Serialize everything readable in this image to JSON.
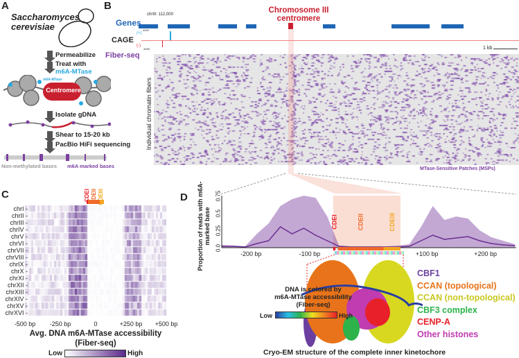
{
  "panels": {
    "a": "A",
    "b": "B",
    "c": "C",
    "d": "D"
  },
  "panel_a": {
    "organism_line1": "Saccharomyces",
    "organism_line2": "cerevisiae",
    "steps": [
      "Permeabilize",
      "Treat with",
      "m6A-MTase",
      "Isolate gDNA",
      "Shear to 15-20 kb",
      "PacBio HiFi sequencing"
    ],
    "mtase_label": "m6A-MTase",
    "centromere": "Centromere",
    "non_methylated": "Non-methylated bases",
    "m6a_marked": "m6A marked bases"
  },
  "panel_b": {
    "coord": "chrIII: 112,000",
    "title_line1": "Chromosome III",
    "title_line2": "centromere",
    "genes_label": "Genes",
    "cage_label": "CAGE",
    "cage_plus": "(+)",
    "cage_minus": "(-)",
    "cage_max": "4000",
    "cage_min": "-4000",
    "fiberseq_label": "Fiber-seq",
    "scale": "1 kb",
    "ylabel": "Individual chromatin fibers",
    "msp_label": "MTase-Sensitive Patches (MSPs)"
  },
  "panel_c": {
    "rows": [
      "chrI",
      "chrII",
      "chrIII",
      "chrIV",
      "chrV",
      "chrVI",
      "chrVII",
      "chrVIII",
      "chrIX",
      "chrX",
      "chrXI",
      "chrXII",
      "chrXIII",
      "chrXIV",
      "chrXV",
      "chrXVI"
    ],
    "xticks": [
      "-500 bp",
      "-250 bp",
      "0",
      "+250 bp",
      "+500 bp"
    ],
    "cde": [
      "CDEI",
      "CDEII",
      "CDEIII"
    ],
    "title_line1": "Avg. DNA m6A-MTase accessibility",
    "title_line2": "(Fiber-seq)",
    "low": "Low",
    "high": "High"
  },
  "chart_data": {
    "type": "area",
    "title": "",
    "ylabel": "Proportion of reads with m6A-marked base",
    "ylim": [
      0,
      0.75
    ],
    "yticks": [
      "0.0",
      "0.25",
      "0.5",
      "0.75"
    ],
    "xlim": [
      -250,
      250
    ],
    "xticks": [
      "-200 bp",
      "-100 bp",
      "+100 bp",
      "+200 bp"
    ],
    "x": [
      -250,
      -230,
      -210,
      -190,
      -170,
      -150,
      -130,
      -110,
      -90,
      -70,
      -50,
      -30,
      -10,
      10,
      30,
      50,
      70,
      90,
      110,
      130,
      150,
      170,
      190,
      210,
      230,
      250
    ],
    "smooth": [
      0.02,
      0.02,
      0.01,
      0.06,
      0.1,
      0.3,
      0.2,
      0.28,
      0.18,
      0.1,
      0.02,
      0.01,
      0.01,
      0.01,
      0.01,
      0.01,
      0.02,
      0.1,
      0.18,
      0.12,
      0.14,
      0.16,
      0.1,
      0.06,
      0.04,
      0.03
    ],
    "peak": [
      0.04,
      0.03,
      0.02,
      0.2,
      0.35,
      0.6,
      0.7,
      0.75,
      0.72,
      0.45,
      0.03,
      0.02,
      0.02,
      0.02,
      0.02,
      0.03,
      0.05,
      0.3,
      0.6,
      0.4,
      0.45,
      0.42,
      0.25,
      0.15,
      0.1,
      0.05
    ],
    "regions": [
      "CDEI",
      "CDEII",
      "CDEIII"
    ]
  },
  "panel_d": {
    "legend": [
      "CBF1",
      "CCAN (topological)",
      "CCAN (non-topological)",
      "CBF3 complex",
      "CENP-A",
      "Other histones"
    ],
    "legend_colors": [
      "#6a3fa0",
      "#e8731a",
      "#c8c820",
      "#2db34a",
      "#e8202a",
      "#c03cb0"
    ],
    "dna_label1": "DNA is colored by",
    "dna_label2": "m6A-MTase accessibility",
    "dna_label3": "(Fiber-seq)",
    "low": "Low",
    "high": "High",
    "caption": "Cryo-EM structure of the complete inner kinetochore"
  },
  "colors": {
    "purple": "#7b3fa0",
    "blue": "#1f66b5",
    "red": "#c8202f",
    "orange": "#f06a2a",
    "gold": "#f5a623"
  }
}
